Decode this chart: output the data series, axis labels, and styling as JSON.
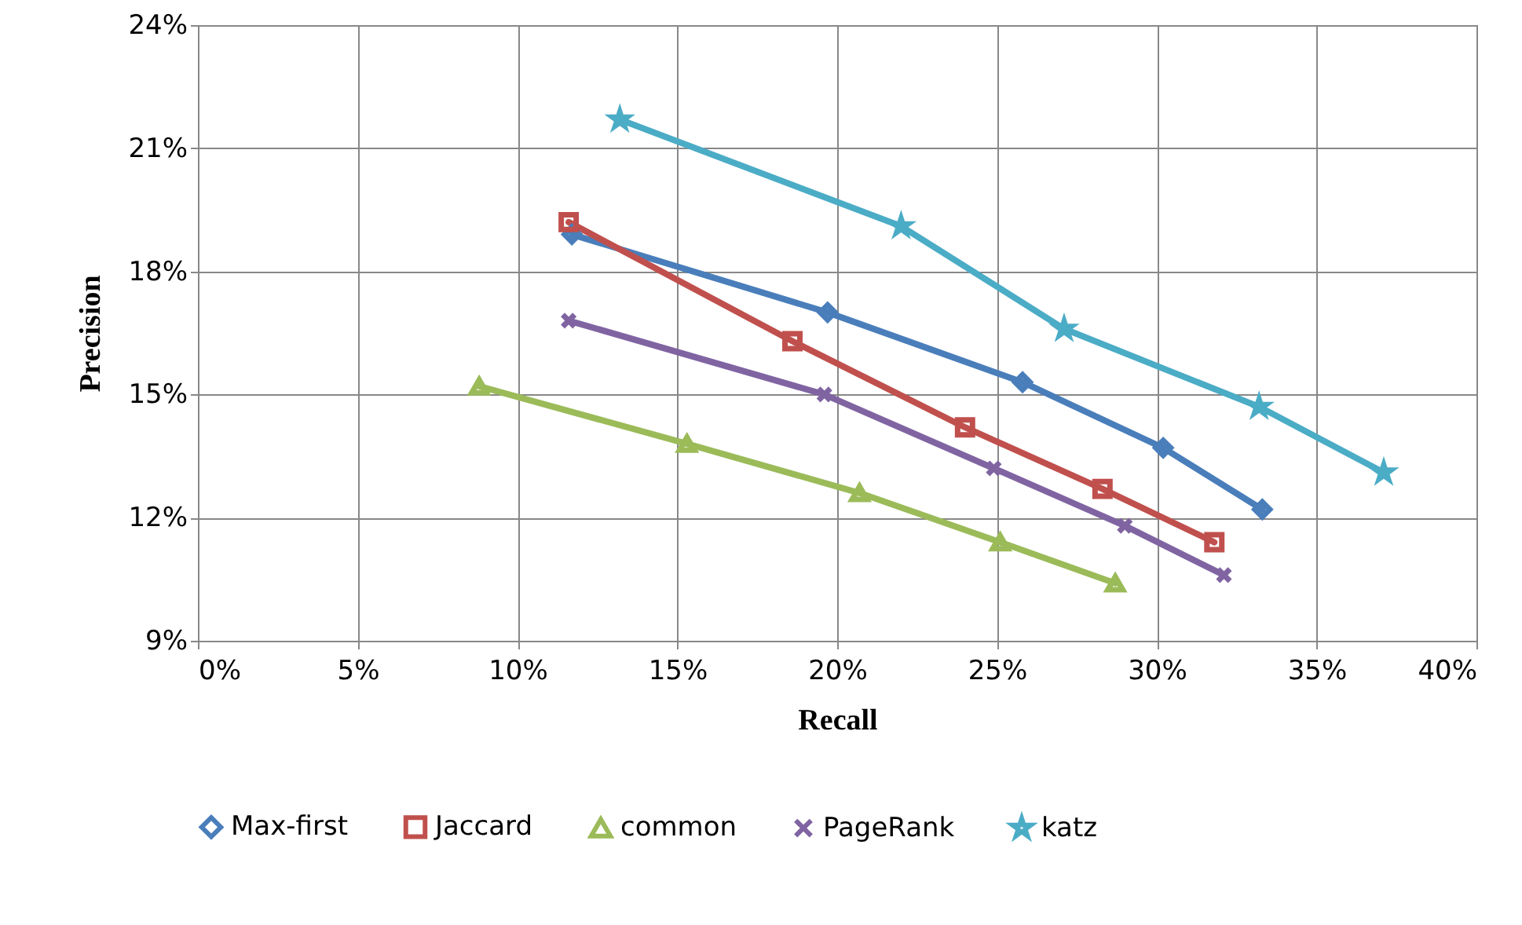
{
  "chart_data": {
    "type": "line",
    "xlabel": "Recall",
    "ylabel": "Precision",
    "xlim": [
      0,
      40
    ],
    "xticks": [
      {
        "value": 0,
        "label": "0%"
      },
      {
        "value": 5,
        "label": "5%"
      },
      {
        "value": 10,
        "label": "10%"
      },
      {
        "value": 15,
        "label": "15%"
      },
      {
        "value": 20,
        "label": "20%"
      },
      {
        "value": 25,
        "label": "25%"
      },
      {
        "value": 30,
        "label": "30%"
      },
      {
        "value": 35,
        "label": "35%"
      },
      {
        "value": 40,
        "label": "40%"
      }
    ],
    "ylim": [
      9,
      24
    ],
    "yticks": [
      {
        "value": 9,
        "label": "9%"
      },
      {
        "value": 12,
        "label": "12%"
      },
      {
        "value": 15,
        "label": "15%"
      },
      {
        "value": 18,
        "label": "18%"
      },
      {
        "value": 21,
        "label": "21%"
      },
      {
        "value": 24,
        "label": "24%"
      }
    ],
    "grid": true,
    "legend": "bottom",
    "line_style": "solid",
    "series": [
      {
        "name": "Max-first",
        "color": "#4a7ebb",
        "marker": "diamond",
        "x": [
          11.7,
          19.7,
          25.8,
          30.2,
          33.3
        ],
        "values": [
          18.9,
          17.0,
          15.3,
          13.7,
          12.2
        ]
      },
      {
        "name": "Jaccard",
        "color": "#c0504d",
        "marker": "square",
        "x": [
          11.6,
          18.6,
          24.0,
          28.3,
          31.8
        ],
        "values": [
          19.2,
          16.3,
          14.2,
          12.7,
          11.4
        ]
      },
      {
        "name": "common",
        "color": "#9bbb59",
        "marker": "triangle",
        "x": [
          8.8,
          15.3,
          20.7,
          25.1,
          28.7
        ],
        "values": [
          15.2,
          13.8,
          12.6,
          11.4,
          10.4
        ]
      },
      {
        "name": "PageRank",
        "color": "#8064a2",
        "marker": "cross",
        "x": [
          11.6,
          19.6,
          24.9,
          29.0,
          32.1
        ],
        "values": [
          16.8,
          15.0,
          13.2,
          11.8,
          10.6
        ]
      },
      {
        "name": "katz",
        "color": "#4bacc6",
        "marker": "star",
        "x": [
          13.2,
          22.0,
          27.1,
          33.2,
          37.1
        ],
        "values": [
          21.7,
          19.1,
          16.6,
          14.7,
          13.1
        ]
      }
    ]
  }
}
